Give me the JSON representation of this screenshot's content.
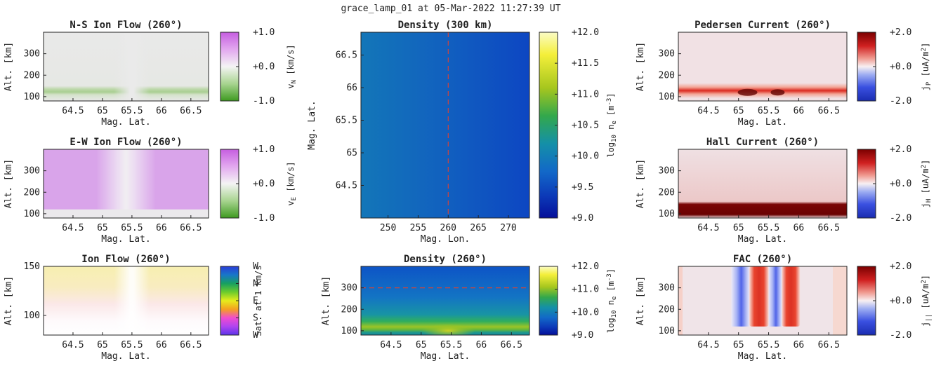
{
  "figure": {
    "suptitle": "grace_lamp_01 at 05-Mar-2022 11:27:39 UT"
  },
  "chart_data": [
    {
      "id": "ns_ion_flow",
      "type": "heatmap",
      "title": "N-S Ion Flow (260°)",
      "xlabel": "Mag. Lat.",
      "ylabel": "Alt. [km]",
      "xlim": [
        64.0,
        66.8
      ],
      "ylim": [
        80,
        400
      ],
      "xticks": [
        "64.5",
        "65",
        "65.5",
        "66",
        "66.5"
      ],
      "xtick_values": [
        64.5,
        65,
        65.5,
        66,
        66.5
      ],
      "yticks": [
        "100",
        "200",
        "300"
      ],
      "ytick_values": [
        100,
        200,
        300
      ],
      "colorbar": {
        "label_main": "v",
        "label_sub": "N",
        "label_rest": " [km/s]",
        "ticks": [
          "+1.0",
          "+0.0",
          "-1.0"
        ],
        "range": [
          -1.0,
          1.0
        ],
        "colormap": "green-white-purple"
      }
    },
    {
      "id": "ew_ion_flow",
      "type": "heatmap",
      "title": "E-W Ion Flow (260°)",
      "xlabel": "Mag. Lat.",
      "ylabel": "Alt. [km]",
      "xlim": [
        64.0,
        66.8
      ],
      "ylim": [
        80,
        400
      ],
      "xticks": [
        "64.5",
        "65",
        "65.5",
        "66",
        "66.5"
      ],
      "xtick_values": [
        64.5,
        65,
        65.5,
        66,
        66.5
      ],
      "yticks": [
        "100",
        "200",
        "300"
      ],
      "ytick_values": [
        100,
        200,
        300
      ],
      "colorbar": {
        "label_main": "v",
        "label_sub": "E",
        "label_rest": " [km/s]",
        "ticks": [
          "+1.0",
          "+0.0",
          "-1.0"
        ],
        "range": [
          -1.0,
          1.0
        ],
        "colormap": "green-white-purple"
      }
    },
    {
      "id": "ion_flow",
      "type": "heatmap",
      "title": "Ion Flow (260°)",
      "xlabel": "Mag. Lat.",
      "ylabel": "Alt. [km]",
      "xlim": [
        64.0,
        66.8
      ],
      "ylim": [
        80,
        150
      ],
      "xticks": [
        "64.5",
        "65",
        "65.5",
        "66",
        "66.5"
      ],
      "xtick_values": [
        64.5,
        65,
        65.5,
        66,
        66.5
      ],
      "yticks": [
        "100",
        "150"
      ],
      "ytick_values": [
        100,
        150
      ],
      "colorbar": {
        "label_main": "Sat. at 1 km/s",
        "label_sub": "",
        "label_rest": "",
        "ticks": [
          "W",
          "N",
          "E",
          "S",
          "W"
        ],
        "colormap": "direction-cyclic"
      }
    },
    {
      "id": "density_300km",
      "type": "heatmap",
      "title": "Density (300 km)",
      "xlabel": "Mag. Lon.",
      "ylabel": "Mag. Lat.",
      "xlim": [
        245.5,
        273.5
      ],
      "ylim": [
        64.0,
        66.85
      ],
      "xticks": [
        "250",
        "255",
        "260",
        "265",
        "270"
      ],
      "xtick_values": [
        250,
        255,
        260,
        265,
        270
      ],
      "yticks": [
        "64.5",
        "65",
        "65.5",
        "66",
        "66.5"
      ],
      "ytick_values": [
        64.5,
        65,
        65.5,
        66,
        66.5
      ],
      "reference_line": {
        "orientation": "vertical",
        "value": 260,
        "color": "#d0443c"
      },
      "colorbar": {
        "label_main": "log",
        "label_sub": "10",
        "label_rest": " n",
        "label_sub2": "e",
        "label_unit": " [m",
        "label_sup": "-3",
        "label_end": "]",
        "ticks": [
          "+12.0",
          "+11.5",
          "+11.0",
          "+10.5",
          "+10.0",
          "+9.5",
          "+9.0"
        ],
        "range": [
          9.0,
          12.0
        ],
        "colormap": "parula"
      }
    },
    {
      "id": "density_260",
      "type": "heatmap",
      "title": "Density (260°)",
      "xlabel": "Mag. Lat.",
      "ylabel": "Alt. [km]",
      "xlim": [
        64.0,
        66.8
      ],
      "ylim": [
        80,
        400
      ],
      "xticks": [
        "64.5",
        "65",
        "65.5",
        "66",
        "66.5"
      ],
      "xtick_values": [
        64.5,
        65,
        65.5,
        66,
        66.5
      ],
      "yticks": [
        "100",
        "200",
        "300"
      ],
      "ytick_values": [
        100,
        200,
        300
      ],
      "reference_line": {
        "orientation": "horizontal",
        "value": 300,
        "color": "#d0443c"
      },
      "colorbar": {
        "label_main": "log",
        "label_sub": "10",
        "label_rest": " n",
        "label_sub2": "e",
        "label_unit": " [m",
        "label_sup": "-3",
        "label_end": "]",
        "ticks": [
          "+12.0",
          "+11.0",
          "+10.0",
          "+9.0"
        ],
        "range": [
          9.0,
          12.0
        ],
        "colormap": "parula"
      }
    },
    {
      "id": "pedersen_current",
      "type": "heatmap",
      "title": "Pedersen Current (260°)",
      "xlabel": "Mag. Lat.",
      "ylabel": "Alt. [km]",
      "xlim": [
        64.0,
        66.8
      ],
      "ylim": [
        80,
        400
      ],
      "xticks": [
        "64.5",
        "65",
        "65.5",
        "66",
        "66.5"
      ],
      "xtick_values": [
        64.5,
        65,
        65.5,
        66,
        66.5
      ],
      "yticks": [
        "100",
        "200",
        "300"
      ],
      "ytick_values": [
        100,
        200,
        300
      ],
      "colorbar": {
        "label_main": "j",
        "label_sub": "P",
        "label_rest": " [uA/m",
        "label_sup": "2",
        "label_end": "]",
        "ticks": [
          "+2.0",
          "+0.0",
          "-2.0"
        ],
        "range": [
          -2.0,
          2.0
        ],
        "colormap": "blue-white-red"
      }
    },
    {
      "id": "hall_current",
      "type": "heatmap",
      "title": "Hall Current (260°)",
      "xlabel": "Mag. Lat.",
      "ylabel": "Alt. [km]",
      "xlim": [
        64.0,
        66.8
      ],
      "ylim": [
        80,
        400
      ],
      "xticks": [
        "64.5",
        "65",
        "65.5",
        "66",
        "66.5"
      ],
      "xtick_values": [
        64.5,
        65,
        65.5,
        66,
        66.5
      ],
      "yticks": [
        "100",
        "200",
        "300"
      ],
      "ytick_values": [
        100,
        200,
        300
      ],
      "colorbar": {
        "label_main": "j",
        "label_sub": "H",
        "label_rest": " [uA/m",
        "label_sup": "2",
        "label_end": "]",
        "ticks": [
          "+2.0",
          "+0.0",
          "-2.0"
        ],
        "range": [
          -2.0,
          2.0
        ],
        "colormap": "blue-white-red"
      }
    },
    {
      "id": "fac",
      "type": "heatmap",
      "title": "FAC (260°)",
      "xlabel": "Mag. Lat.",
      "ylabel": "Alt. [km]",
      "xlim": [
        64.0,
        66.8
      ],
      "ylim": [
        80,
        400
      ],
      "xticks": [
        "64.5",
        "65",
        "65.5",
        "66",
        "66.5"
      ],
      "xtick_values": [
        64.5,
        65,
        65.5,
        66,
        66.5
      ],
      "yticks": [
        "100",
        "200",
        "300"
      ],
      "ytick_values": [
        100,
        200,
        300
      ],
      "colorbar": {
        "label_main": "j",
        "label_sub": "||",
        "label_rest": " [uA/m",
        "label_sup": "2",
        "label_end": "]",
        "ticks": [
          "+2.0",
          "+0.0",
          "-2.0"
        ],
        "range": [
          -2.0,
          2.0
        ],
        "colormap": "blue-white-red"
      }
    }
  ]
}
